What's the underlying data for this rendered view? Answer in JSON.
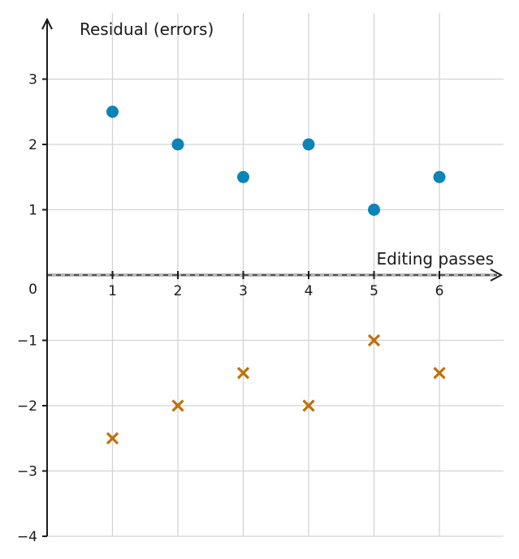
{
  "chart_data": {
    "type": "scatter",
    "xlabel": "Editing passes",
    "ylabel": "Residual (errors)",
    "xlim": [
      0,
      7
    ],
    "ylim": [
      -4,
      4
    ],
    "x_ticks": [
      1,
      2,
      3,
      4,
      5,
      6
    ],
    "y_ticks": [
      -4,
      -3,
      -2,
      -1,
      0,
      1,
      2,
      3
    ],
    "y_tick_labels": [
      "−4",
      "−3",
      "−2",
      "−1",
      "0",
      "1",
      "2",
      "3"
    ],
    "grid": true,
    "zero_line": "dashed",
    "series": [
      {
        "marker": "circle",
        "color": "#0b84b8",
        "x": [
          1,
          2,
          3,
          4,
          5,
          6
        ],
        "y": [
          2.5,
          2,
          1.5,
          2,
          1,
          1.5
        ]
      },
      {
        "marker": "x",
        "color": "#c0700a",
        "x": [
          1,
          2,
          3,
          4,
          5,
          6
        ],
        "y": [
          -2.5,
          -2,
          -1.5,
          -2,
          -1,
          -1.5
        ]
      }
    ]
  }
}
